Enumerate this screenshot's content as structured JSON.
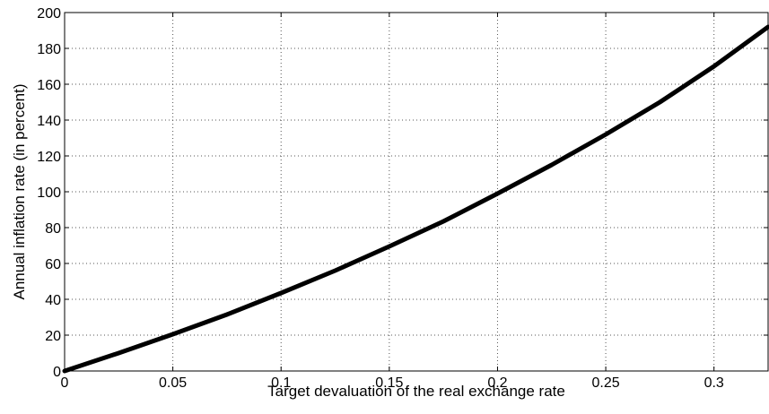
{
  "chart_data": {
    "type": "line",
    "title": "",
    "xlabel": "Target devaluation of the real exchange rate",
    "ylabel": "Annual inflation rate (in percent)",
    "xlim": [
      0,
      0.325
    ],
    "ylim": [
      0,
      200
    ],
    "grid": true,
    "x_ticks": [
      "0",
      "0.05",
      "0.1",
      "0.15",
      "0.2",
      "0.25",
      "0.3"
    ],
    "y_ticks": [
      "0",
      "20",
      "40",
      "60",
      "80",
      "100",
      "120",
      "140",
      "160",
      "180",
      "200"
    ],
    "series": [
      {
        "color": "#000000",
        "x": [
          0,
          0.025,
          0.05,
          0.075,
          0.1,
          0.125,
          0.15,
          0.175,
          0.2,
          0.225,
          0.25,
          0.275,
          0.3,
          0.325
        ],
        "y": [
          0,
          10,
          20.5,
          31.5,
          43.5,
          56,
          69.5,
          83.5,
          99,
          115,
          132,
          150,
          170,
          192
        ]
      }
    ]
  }
}
